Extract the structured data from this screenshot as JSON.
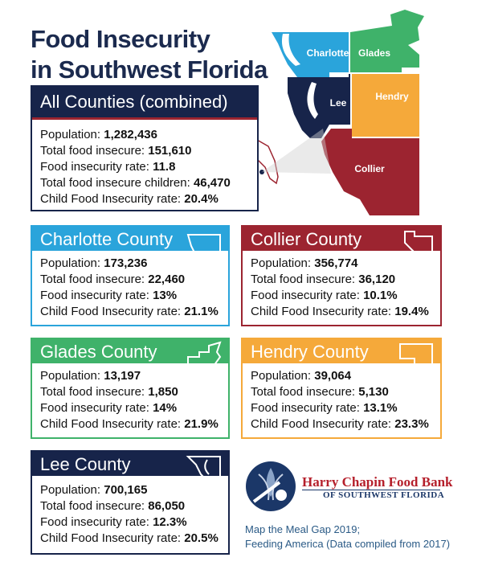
{
  "title": {
    "line1": "Food Insecurity",
    "line2": "in Southwest Florida"
  },
  "map": {
    "labels": {
      "charlotte": "Charlotte",
      "glades": "Glades",
      "lee": "Lee",
      "hendry": "Hendry",
      "collier": "Collier"
    },
    "colors": {
      "charlotte": "#2aa4db",
      "glades": "#3fb26a",
      "lee": "#17244a",
      "hendry": "#f5a93a",
      "collier": "#9c2430"
    }
  },
  "all_counties": {
    "header": "All Counties (combined)",
    "rows": [
      {
        "label": "Population: ",
        "value": "1,282,436"
      },
      {
        "label": "Total food insecure: ",
        "value": "151,610"
      },
      {
        "label": "Food insecurity rate: ",
        "value": "11.8"
      },
      {
        "label": "Total food insecure children: ",
        "value": "46,470"
      },
      {
        "label": "Child Food Insecurity rate: ",
        "value": "20.4%"
      }
    ]
  },
  "counties": {
    "charlotte": {
      "header": "Charlotte County",
      "color": "#2aa4db",
      "rows": [
        {
          "label": "Population: ",
          "value": "173,236"
        },
        {
          "label": "Total food insecure: ",
          "value": "22,460"
        },
        {
          "label": "Food insecurity rate: ",
          "value": "13%"
        },
        {
          "label": "Child Food Insecurity rate: ",
          "value": "21.1%"
        }
      ]
    },
    "collier": {
      "header": "Collier County",
      "color": "#9c2430",
      "rows": [
        {
          "label": "Population: ",
          "value": "356,774"
        },
        {
          "label": "Total food insecure: ",
          "value": "36,120"
        },
        {
          "label": "Food insecurity rate: ",
          "value": "10.1%"
        },
        {
          "label": "Child Food Insecurity rate: ",
          "value": "19.4%"
        }
      ]
    },
    "glades": {
      "header": "Glades County",
      "color": "#3fb26a",
      "rows": [
        {
          "label": "Population: ",
          "value": "13,197"
        },
        {
          "label": "Total food insecure: ",
          "value": "1,850"
        },
        {
          "label": "Food insecurity rate: ",
          "value": "14%"
        },
        {
          "label": "Child Food Insecurity rate: ",
          "value": "21.9%"
        }
      ]
    },
    "hendry": {
      "header": "Hendry County",
      "color": "#f5a93a",
      "rows": [
        {
          "label": "Population: ",
          "value": "39,064"
        },
        {
          "label": "Total food insecure: ",
          "value": "5,130"
        },
        {
          "label": "Food insecurity rate: ",
          "value": "13.1%"
        },
        {
          "label": "Child Food Insecurity rate: ",
          "value": "23.3%"
        }
      ]
    },
    "lee": {
      "header": "Lee County",
      "color": "#17244a",
      "rows": [
        {
          "label": "Population: ",
          "value": "700,165"
        },
        {
          "label": "Total food insecure: ",
          "value": "86,050"
        },
        {
          "label": "Food insecurity rate: ",
          "value": "12.3%"
        },
        {
          "label": "Child Food Insecurity rate: ",
          "value": "20.5%"
        }
      ]
    }
  },
  "logo": {
    "line1": "Harry Chapin Food Bank",
    "line2": "OF SOUTHWEST FLORIDA"
  },
  "source": {
    "line1": "Map the Meal Gap 2019;",
    "line2": "Feeding America (Data compiled from 2017)"
  }
}
